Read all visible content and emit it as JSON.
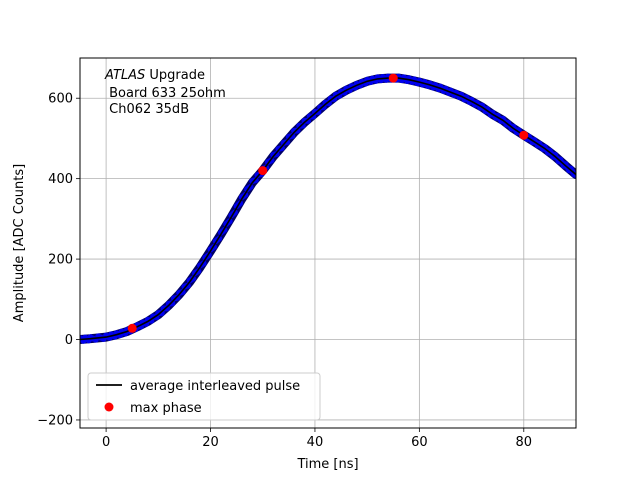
{
  "chart_data": {
    "type": "scatter",
    "title": "",
    "xlabel": "Time [ns]",
    "ylabel": "Amplitude [ADC Counts]",
    "xlim": [
      -5,
      90
    ],
    "ylim": [
      -220,
      700
    ],
    "x_ticks": [
      0,
      20,
      40,
      60,
      80
    ],
    "y_ticks": [
      -200,
      0,
      200,
      400,
      600
    ],
    "grid": true,
    "annotation": {
      "line1_italic": "ATLAS",
      "line1_rest": " Upgrade",
      "line2": " Board 633 25ohm",
      "line3": " Ch062 35dB"
    },
    "legend": {
      "placement": "lower-left",
      "entries": [
        {
          "label": "average interleaved pulse",
          "marker": "line",
          "color": "#000000"
        },
        {
          "label": "max phase",
          "marker": "circle",
          "color": "#ff0000"
        }
      ]
    },
    "series": [
      {
        "name": "average interleaved pulse",
        "style": "line",
        "color": "#000000",
        "x": [
          -5,
          -3,
          0,
          2,
          4,
          6,
          8,
          10,
          12,
          14,
          16,
          18,
          20,
          22,
          24,
          26,
          28,
          30,
          32,
          34,
          36,
          38,
          40,
          42,
          44,
          46,
          48,
          50,
          52,
          54,
          56,
          58,
          60,
          62,
          64,
          66,
          68,
          70,
          72,
          74,
          76,
          78,
          80,
          82,
          84,
          86,
          88,
          90
        ],
        "y": [
          0,
          2,
          6,
          12,
          20,
          32,
          45,
          62,
          85,
          112,
          143,
          180,
          220,
          262,
          305,
          350,
          390,
          420,
          455,
          485,
          515,
          540,
          562,
          585,
          605,
          620,
          632,
          642,
          648,
          650,
          650,
          646,
          640,
          633,
          625,
          615,
          605,
          592,
          578,
          560,
          545,
          525,
          508,
          492,
          475,
          455,
          432,
          410
        ]
      },
      {
        "name": "samples",
        "style": "points",
        "color": "#0000ee",
        "x": [
          -5,
          -3,
          0,
          2,
          4,
          6,
          8,
          10,
          12,
          14,
          16,
          18,
          20,
          22,
          24,
          26,
          28,
          30,
          32,
          34,
          36,
          38,
          40,
          42,
          44,
          46,
          48,
          50,
          52,
          54,
          56,
          58,
          60,
          62,
          64,
          66,
          68,
          70,
          72,
          74,
          76,
          78,
          80,
          82,
          84,
          86,
          88,
          90
        ],
        "y": [
          0,
          2,
          6,
          12,
          20,
          32,
          45,
          62,
          85,
          112,
          143,
          180,
          220,
          262,
          305,
          350,
          390,
          420,
          455,
          485,
          515,
          540,
          562,
          585,
          605,
          620,
          632,
          642,
          648,
          650,
          650,
          646,
          640,
          633,
          625,
          615,
          605,
          592,
          578,
          560,
          545,
          525,
          508,
          492,
          475,
          455,
          432,
          410
        ]
      },
      {
        "name": "max phase",
        "style": "markers",
        "color": "#ff0000",
        "x": [
          5,
          30,
          55,
          80
        ],
        "y": [
          28,
          420,
          650,
          508
        ]
      }
    ]
  }
}
